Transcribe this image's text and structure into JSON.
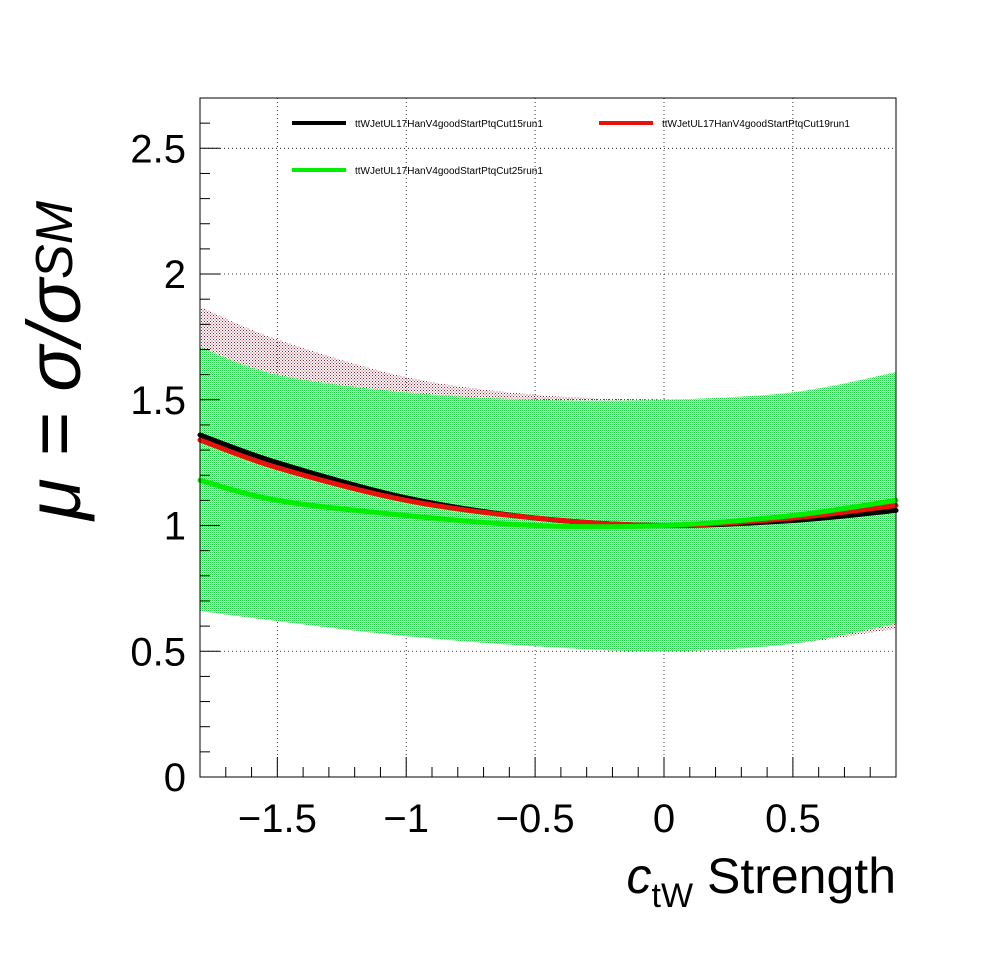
{
  "chart_data": {
    "type": "line",
    "title": "",
    "xlabel": {
      "main": "c",
      "sub": "tW",
      "suffix": " Strength"
    },
    "ylabel": {
      "prefix": "μ = σ/σ",
      "sub": "SM"
    },
    "xlim": [
      -1.8,
      0.9
    ],
    "ylim": [
      0,
      2.7
    ],
    "x_ticks": [
      {
        "value": -1.5,
        "label": "−1.5"
      },
      {
        "value": -1,
        "label": "−1"
      },
      {
        "value": -0.5,
        "label": "−0.5"
      },
      {
        "value": 0,
        "label": "0"
      },
      {
        "value": 0.5,
        "label": "0.5"
      }
    ],
    "y_ticks": [
      {
        "value": 0,
        "label": "0"
      },
      {
        "value": 0.5,
        "label": "0.5"
      },
      {
        "value": 1,
        "label": "1"
      },
      {
        "value": 1.5,
        "label": "1.5"
      },
      {
        "value": 2,
        "label": "2"
      },
      {
        "value": 2.5,
        "label": "2.5"
      }
    ],
    "grid": true,
    "legend_position": "top",
    "x": [
      -1.8,
      -1.5,
      -1.0,
      -0.5,
      0.0,
      0.5,
      0.9
    ],
    "series": [
      {
        "name": "ttWJetUL17HanV4goodStartPtqCut15run1",
        "color": "#000000",
        "values": [
          1.36,
          1.25,
          1.11,
          1.03,
          1.0,
          1.02,
          1.06
        ]
      },
      {
        "name": "ttWJetUL17HanV4goodStartPtqCut19run1",
        "color": "#e8120c",
        "values": [
          1.34,
          1.23,
          1.1,
          1.03,
          1.0,
          1.03,
          1.08
        ]
      },
      {
        "name": "ttWJetUL17HanV4goodStartPtqCut25run1",
        "color": "#00ee00",
        "values": [
          1.18,
          1.1,
          1.04,
          1.0,
          1.0,
          1.04,
          1.1
        ]
      }
    ],
    "bands": [
      {
        "color": "#a01830",
        "lower": [
          0.66,
          0.62,
          0.56,
          0.52,
          0.5,
          0.53,
          0.59
        ],
        "upper": [
          1.87,
          1.74,
          1.59,
          1.52,
          1.5,
          1.5,
          1.53
        ]
      },
      {
        "color": "#22cc44",
        "lower": [
          0.66,
          0.62,
          0.56,
          0.52,
          0.5,
          0.53,
          0.61
        ],
        "upper": [
          1.71,
          1.6,
          1.53,
          1.5,
          1.5,
          1.53,
          1.61
        ]
      }
    ]
  }
}
